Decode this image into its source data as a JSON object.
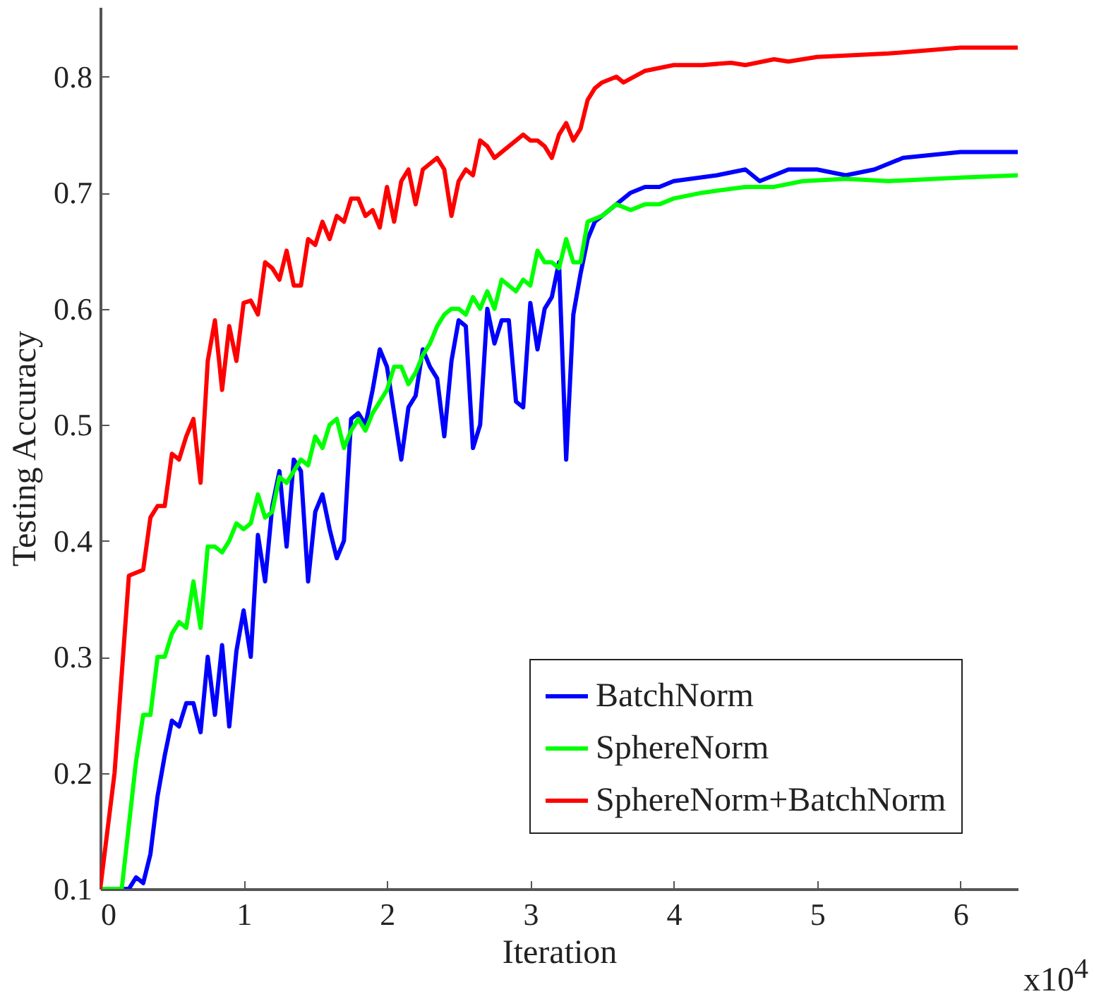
{
  "chart_data": {
    "type": "line",
    "xlabel": "Iteration",
    "ylabel": "Testing Accuracy",
    "annotations": [
      "x10$^{4}$"
    ],
    "xlim": [
      0,
      6.4
    ],
    "ylim": [
      0.1,
      0.86
    ],
    "xticks": [
      0,
      1,
      2,
      3,
      4,
      5,
      6
    ],
    "yticks": [
      0.1,
      0.2,
      0.3,
      0.4,
      0.5,
      0.6,
      0.7,
      0.8
    ],
    "grid": false,
    "legend": "bottom right",
    "marker": "none",
    "line_style": "solid",
    "series": [
      {
        "name": "BatchNorm",
        "color": "#0000ff",
        "x": [
          0,
          0.2,
          0.25,
          0.3,
          0.35,
          0.4,
          0.45,
          0.5,
          0.55,
          0.6,
          0.65,
          0.7,
          0.75,
          0.8,
          0.85,
          0.9,
          0.95,
          1.0,
          1.05,
          1.1,
          1.15,
          1.2,
          1.25,
          1.3,
          1.35,
          1.4,
          1.45,
          1.5,
          1.55,
          1.6,
          1.65,
          1.7,
          1.75,
          1.8,
          1.85,
          1.9,
          1.95,
          2.0,
          2.1,
          2.15,
          2.2,
          2.25,
          2.3,
          2.35,
          2.4,
          2.45,
          2.5,
          2.55,
          2.6,
          2.65,
          2.7,
          2.75,
          2.8,
          2.85,
          2.9,
          2.95,
          3.0,
          3.05,
          3.1,
          3.15,
          3.2,
          3.25,
          3.3,
          3.35,
          3.4,
          3.45,
          3.5,
          3.6,
          3.7,
          3.8,
          3.9,
          4.0,
          4.3,
          4.5,
          4.6,
          4.8,
          5.0,
          5.2,
          5.4,
          5.6,
          6.0,
          6.4
        ],
        "values": [
          0.1,
          0.1,
          0.11,
          0.105,
          0.13,
          0.18,
          0.215,
          0.245,
          0.24,
          0.26,
          0.26,
          0.235,
          0.3,
          0.25,
          0.31,
          0.24,
          0.305,
          0.34,
          0.3,
          0.405,
          0.365,
          0.43,
          0.46,
          0.395,
          0.47,
          0.46,
          0.365,
          0.425,
          0.44,
          0.41,
          0.385,
          0.4,
          0.505,
          0.51,
          0.5,
          0.53,
          0.565,
          0.55,
          0.47,
          0.515,
          0.525,
          0.565,
          0.55,
          0.54,
          0.49,
          0.555,
          0.59,
          0.585,
          0.48,
          0.5,
          0.6,
          0.57,
          0.59,
          0.59,
          0.52,
          0.515,
          0.605,
          0.565,
          0.6,
          0.61,
          0.64,
          0.47,
          0.595,
          0.63,
          0.66,
          0.675,
          0.68,
          0.69,
          0.7,
          0.705,
          0.705,
          0.71,
          0.715,
          0.72,
          0.71,
          0.72,
          0.72,
          0.715,
          0.72,
          0.73,
          0.735,
          0.735
        ]
      },
      {
        "name": "SphereNorm",
        "color": "#00ff00",
        "x": [
          0,
          0.15,
          0.25,
          0.3,
          0.35,
          0.4,
          0.45,
          0.5,
          0.55,
          0.6,
          0.65,
          0.7,
          0.75,
          0.8,
          0.85,
          0.9,
          0.95,
          1.0,
          1.05,
          1.1,
          1.15,
          1.2,
          1.25,
          1.3,
          1.35,
          1.4,
          1.45,
          1.5,
          1.55,
          1.6,
          1.65,
          1.7,
          1.75,
          1.8,
          1.85,
          1.9,
          2.0,
          2.05,
          2.1,
          2.15,
          2.2,
          2.25,
          2.3,
          2.35,
          2.4,
          2.45,
          2.5,
          2.55,
          2.6,
          2.65,
          2.7,
          2.75,
          2.8,
          2.85,
          2.9,
          2.95,
          3.0,
          3.05,
          3.1,
          3.15,
          3.2,
          3.25,
          3.3,
          3.35,
          3.4,
          3.5,
          3.6,
          3.7,
          3.8,
          3.9,
          4.0,
          4.2,
          4.5,
          4.7,
          4.9,
          5.2,
          5.5,
          6.0,
          6.4
        ],
        "values": [
          0.1,
          0.1,
          0.21,
          0.25,
          0.25,
          0.3,
          0.3,
          0.32,
          0.33,
          0.325,
          0.365,
          0.325,
          0.395,
          0.395,
          0.39,
          0.4,
          0.415,
          0.41,
          0.415,
          0.44,
          0.42,
          0.425,
          0.455,
          0.45,
          0.46,
          0.47,
          0.465,
          0.49,
          0.48,
          0.5,
          0.505,
          0.48,
          0.495,
          0.505,
          0.495,
          0.51,
          0.53,
          0.55,
          0.55,
          0.535,
          0.545,
          0.56,
          0.57,
          0.585,
          0.595,
          0.6,
          0.6,
          0.595,
          0.61,
          0.6,
          0.615,
          0.6,
          0.625,
          0.62,
          0.615,
          0.625,
          0.62,
          0.65,
          0.64,
          0.64,
          0.635,
          0.66,
          0.64,
          0.64,
          0.675,
          0.68,
          0.69,
          0.685,
          0.69,
          0.69,
          0.695,
          0.7,
          0.705,
          0.705,
          0.71,
          0.712,
          0.71,
          0.713,
          0.715
        ]
      },
      {
        "name": "SphereNorm+BatchNorm",
        "color": "#ff0000",
        "x": [
          0,
          0.1,
          0.2,
          0.3,
          0.35,
          0.4,
          0.45,
          0.5,
          0.55,
          0.6,
          0.65,
          0.7,
          0.75,
          0.8,
          0.85,
          0.9,
          0.95,
          1.0,
          1.05,
          1.1,
          1.15,
          1.2,
          1.25,
          1.3,
          1.35,
          1.4,
          1.45,
          1.5,
          1.55,
          1.6,
          1.65,
          1.7,
          1.75,
          1.8,
          1.85,
          1.9,
          1.95,
          2.0,
          2.05,
          2.1,
          2.15,
          2.2,
          2.25,
          2.3,
          2.35,
          2.4,
          2.45,
          2.5,
          2.55,
          2.6,
          2.65,
          2.7,
          2.75,
          2.8,
          2.85,
          2.9,
          2.95,
          3.0,
          3.05,
          3.1,
          3.15,
          3.2,
          3.25,
          3.3,
          3.35,
          3.4,
          3.45,
          3.5,
          3.6,
          3.65,
          3.8,
          4.0,
          4.2,
          4.4,
          4.5,
          4.7,
          4.8,
          5.0,
          5.5,
          6.0,
          6.4
        ],
        "values": [
          0.1,
          0.2,
          0.37,
          0.375,
          0.42,
          0.43,
          0.43,
          0.475,
          0.47,
          0.49,
          0.505,
          0.45,
          0.555,
          0.59,
          0.53,
          0.585,
          0.555,
          0.605,
          0.607,
          0.595,
          0.64,
          0.635,
          0.625,
          0.65,
          0.62,
          0.62,
          0.66,
          0.655,
          0.675,
          0.66,
          0.68,
          0.675,
          0.695,
          0.695,
          0.68,
          0.685,
          0.67,
          0.705,
          0.675,
          0.71,
          0.72,
          0.69,
          0.72,
          0.725,
          0.73,
          0.72,
          0.68,
          0.71,
          0.72,
          0.715,
          0.745,
          0.74,
          0.73,
          0.735,
          0.74,
          0.745,
          0.75,
          0.745,
          0.745,
          0.74,
          0.73,
          0.75,
          0.76,
          0.745,
          0.755,
          0.78,
          0.79,
          0.795,
          0.8,
          0.795,
          0.805,
          0.81,
          0.81,
          0.812,
          0.81,
          0.815,
          0.813,
          0.817,
          0.82,
          0.825,
          0.825
        ]
      }
    ]
  }
}
